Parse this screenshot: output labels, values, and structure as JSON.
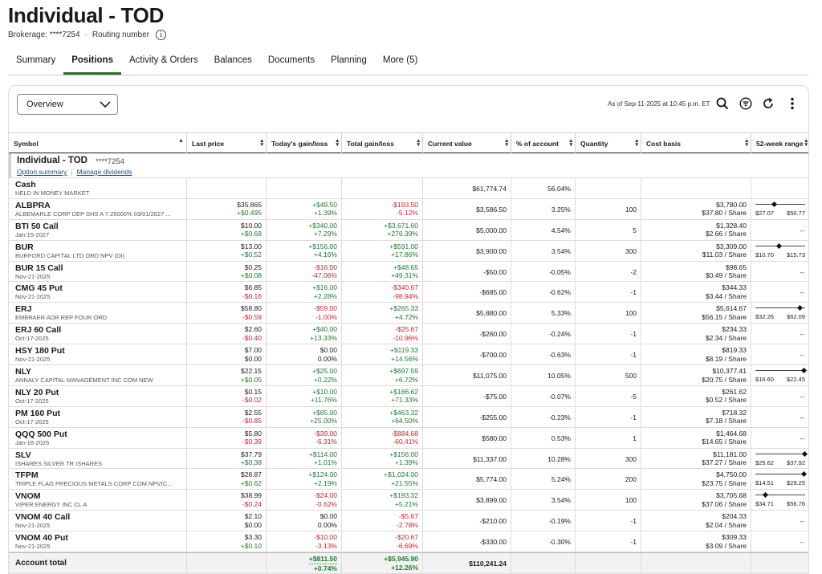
{
  "account": {
    "title": "Individual - TOD",
    "brokerage_label": "Brokerage: ****7254",
    "routing_label": "Routing number",
    "sep": "·"
  },
  "tabs": [
    "Summary",
    "Positions",
    "Activity & Orders",
    "Balances",
    "Documents",
    "Planning",
    "More (5)"
  ],
  "toolbar": {
    "view": "Overview",
    "as_of": "As of Sep-11-2025 at 10:45 p.m. ET"
  },
  "columns": [
    "Symbol",
    "Last price",
    "Today's gain/loss",
    "Total gain/loss",
    "Current value",
    "% of account",
    "Quantity",
    "Cost basis",
    "52-week range"
  ],
  "group": {
    "name": "Individual - TOD",
    "number": "****7254",
    "links": [
      "Option summary",
      "Manage dividends"
    ]
  },
  "cash": {
    "symbol": "Cash",
    "desc": "HELD IN MONEY MARKET",
    "value": "$61,774.74",
    "pct": "56.04%"
  },
  "rows": [
    {
      "sym": "ALBPRA",
      "desc": "ALBEMARLE CORP DEP SHS A 7.25000% 03/01/2027 ...",
      "last": "$35.865",
      "last_chg": "+$0.495",
      "last_dir": "pos",
      "today": "+$49.50",
      "today_pct": "+1.39%",
      "today_dir": "pos",
      "total": "-$193.50",
      "total_pct": "-5.12%",
      "total_dir": "neg",
      "value": "$3,586.50",
      "pct": "3.25%",
      "qty": "100",
      "cost": "$3,780.00",
      "cost_share": "$37.80 / Share",
      "rng": {
        "lo": "$27.07",
        "hi": "$50.77",
        "pos": 0.37
      }
    },
    {
      "sym": "BTI 50 Call",
      "desc": "Jan-15-2027",
      "last": "$10.00",
      "last_chg": "+$0.68",
      "last_dir": "pos",
      "today": "+$340.00",
      "today_pct": "+7.29%",
      "today_dir": "pos",
      "total": "+$3,671.60",
      "total_pct": "+276.39%",
      "total_dir": "pos",
      "value": "$5,000.00",
      "pct": "4.54%",
      "qty": "5",
      "cost": "$1,328.40",
      "cost_share": "$2.66 / Share",
      "rng": null
    },
    {
      "sym": "BUR",
      "desc": "BURFORD CAPITAL LTD ORD NPV (DI)",
      "last": "$13.00",
      "last_chg": "+$0.52",
      "last_dir": "pos",
      "today": "+$156.00",
      "today_pct": "+4.16%",
      "today_dir": "pos",
      "total": "+$591.00",
      "total_pct": "+17.86%",
      "total_dir": "pos",
      "value": "$3,900.00",
      "pct": "3.54%",
      "qty": "300",
      "cost": "$3,309.00",
      "cost_share": "$11.03 / Share",
      "rng": {
        "lo": "$10.70",
        "hi": "$15.73",
        "pos": 0.46
      }
    },
    {
      "sym": "BUR 15 Call",
      "desc": "Nov-21-2025",
      "last": "$0.25",
      "last_chg": "+$0.08",
      "last_dir": "pos",
      "today": "-$16.00",
      "today_pct": "-47.06%",
      "today_dir": "neg",
      "total": "+$48.65",
      "total_pct": "+49.31%",
      "total_dir": "pos",
      "value": "-$50.00",
      "pct": "-0.05%",
      "qty": "-2",
      "cost": "$98.65",
      "cost_share": "$0.49 / Share",
      "rng": null
    },
    {
      "sym": "CMG 45 Put",
      "desc": "Nov-21-2025",
      "last": "$6.85",
      "last_chg": "-$0.16",
      "last_dir": "neg",
      "today": "+$16.00",
      "today_pct": "+2.28%",
      "today_dir": "pos",
      "total": "-$340.67",
      "total_pct": "-98.94%",
      "total_dir": "neg",
      "value": "-$685.00",
      "pct": "-0.62%",
      "qty": "-1",
      "cost": "$344.33",
      "cost_share": "$3.44 / Share",
      "rng": null
    },
    {
      "sym": "ERJ",
      "desc": "EMBRAER ADR REP FOUR ORD",
      "last": "$58.80",
      "last_chg": "-$0.59",
      "last_dir": "neg",
      "today": "-$59.00",
      "today_pct": "-1.00%",
      "today_dir": "neg",
      "total": "+$265.33",
      "total_pct": "+4.72%",
      "total_dir": "pos",
      "value": "$5,880.00",
      "pct": "5.33%",
      "qty": "100",
      "cost": "$5,614.67",
      "cost_share": "$56.15 / Share",
      "rng": {
        "lo": "$32.26",
        "hi": "$62.09",
        "pos": 0.89
      }
    },
    {
      "sym": "ERJ 60 Call",
      "desc": "Oct-17-2025",
      "last": "$2.60",
      "last_chg": "-$0.40",
      "last_dir": "neg",
      "today": "+$40.00",
      "today_pct": "+13.33%",
      "today_dir": "pos",
      "total": "-$25.67",
      "total_pct": "-10.96%",
      "total_dir": "neg",
      "value": "-$260.00",
      "pct": "-0.24%",
      "qty": "-1",
      "cost": "$234.33",
      "cost_share": "$2.34 / Share",
      "rng": null
    },
    {
      "sym": "HSY 180 Put",
      "desc": "Nov-21-2025",
      "last": "$7.00",
      "last_chg": "$0.00",
      "last_dir": "zero",
      "today": "$0.00",
      "today_pct": "0.00%",
      "today_dir": "zero",
      "total": "+$119.33",
      "total_pct": "+14.56%",
      "total_dir": "pos",
      "value": "-$700.00",
      "pct": "-0.63%",
      "qty": "-1",
      "cost": "$819.33",
      "cost_share": "$8.19 / Share",
      "rng": null
    },
    {
      "sym": "NLY",
      "desc": "ANNALY CAPITAL MANAGEMENT INC COM NEW",
      "last": "$22.15",
      "last_chg": "+$0.05",
      "last_dir": "pos",
      "today": "+$25.00",
      "today_pct": "+0.22%",
      "today_dir": "pos",
      "total": "+$697.59",
      "total_pct": "+6.72%",
      "total_dir": "pos",
      "value": "$11,075.00",
      "pct": "10.05%",
      "qty": "500",
      "cost": "$10,377.41",
      "cost_share": "$20.75 / Share",
      "rng": {
        "lo": "$16.60",
        "hi": "$22.45",
        "pos": 0.97
      }
    },
    {
      "sym": "NLY 20 Put",
      "desc": "Oct-17-2025",
      "last": "$0.15",
      "last_chg": "-$0.02",
      "last_dir": "neg",
      "today": "+$10.00",
      "today_pct": "+11.76%",
      "today_dir": "pos",
      "total": "+$186.62",
      "total_pct": "+71.33%",
      "total_dir": "pos",
      "value": "-$75.00",
      "pct": "-0.07%",
      "qty": "-5",
      "cost": "$261.62",
      "cost_share": "$0.52 / Share",
      "rng": null
    },
    {
      "sym": "PM 160 Put",
      "desc": "Oct-17-2025",
      "last": "$2.55",
      "last_chg": "-$0.85",
      "last_dir": "neg",
      "today": "+$85.00",
      "today_pct": "+25.00%",
      "today_dir": "pos",
      "total": "+$463.32",
      "total_pct": "+64.50%",
      "total_dir": "pos",
      "value": "-$255.00",
      "pct": "-0.23%",
      "qty": "-1",
      "cost": "$718.32",
      "cost_share": "$7.18 / Share",
      "rng": null
    },
    {
      "sym": "QQQ 500 Put",
      "desc": "Jan-16-2026",
      "last": "$5.80",
      "last_chg": "-$0.39",
      "last_dir": "neg",
      "today": "-$39.00",
      "today_pct": "-6.31%",
      "today_dir": "neg",
      "total": "-$884.68",
      "total_pct": "-60.41%",
      "total_dir": "neg",
      "value": "$580.00",
      "pct": "0.53%",
      "qty": "1",
      "cost": "$1,464.68",
      "cost_share": "$14.65 / Share",
      "rng": null
    },
    {
      "sym": "SLV",
      "desc": "ISHARES SILVER TR ISHARES",
      "last": "$37.79",
      "last_chg": "+$0.38",
      "last_dir": "pos",
      "today": "+$114.00",
      "today_pct": "+1.01%",
      "today_dir": "pos",
      "total": "+$156.00",
      "total_pct": "+1.39%",
      "total_dir": "pos",
      "value": "$11,337.00",
      "pct": "10.28%",
      "qty": "300",
      "cost": "$11,181.00",
      "cost_share": "$37.27 / Share",
      "rng": {
        "lo": "$25.62",
        "hi": "$37.92",
        "pos": 0.99
      }
    },
    {
      "sym": "TFPM",
      "desc": "TRIPLE FLAG PRECIOUS METALS CORP COM NPV(C...",
      "last": "$28.87",
      "last_chg": "+$0.62",
      "last_dir": "pos",
      "today": "+$124.00",
      "today_pct": "+2.19%",
      "today_dir": "pos",
      "total": "+$1,024.00",
      "total_pct": "+21.55%",
      "total_dir": "pos",
      "value": "$5,774.00",
      "pct": "5.24%",
      "qty": "200",
      "cost": "$4,750.00",
      "cost_share": "$23.75 / Share",
      "rng": {
        "lo": "$14.51",
        "hi": "$29.25",
        "pos": 0.97
      }
    },
    {
      "sym": "VNOM",
      "desc": "VIPER ENERGY INC CL A",
      "last": "$38.99",
      "last_chg": "-$0.24",
      "last_dir": "neg",
      "today": "-$24.00",
      "today_pct": "-0.62%",
      "today_dir": "neg",
      "total": "+$193.32",
      "total_pct": "+5.21%",
      "total_dir": "pos",
      "value": "$3,899.00",
      "pct": "3.54%",
      "qty": "100",
      "cost": "$3,705.68",
      "cost_share": "$37.06 / Share",
      "rng": {
        "lo": "$34.71",
        "hi": "$56.76",
        "pos": 0.19
      }
    },
    {
      "sym": "VNOM 40 Call",
      "desc": "Nov-21-2025",
      "last": "$2.10",
      "last_chg": "$0.00",
      "last_dir": "zero",
      "today": "$0.00",
      "today_pct": "0.00%",
      "today_dir": "zero",
      "total": "-$5.67",
      "total_pct": "-2.78%",
      "total_dir": "neg",
      "value": "-$210.00",
      "pct": "-0.19%",
      "qty": "-1",
      "cost": "$204.33",
      "cost_share": "$2.04 / Share",
      "rng": null
    },
    {
      "sym": "VNOM 40 Put",
      "desc": "Nov-21-2025",
      "last": "$3.30",
      "last_chg": "+$0.10",
      "last_dir": "pos",
      "today": "-$10.00",
      "today_pct": "-3.13%",
      "today_dir": "neg",
      "total": "-$20.67",
      "total_pct": "-6.69%",
      "total_dir": "neg",
      "value": "-$330.00",
      "pct": "-0.30%",
      "qty": "-1",
      "cost": "$309.33",
      "cost_share": "$3.09 / Share",
      "rng": null
    }
  ],
  "total": {
    "label": "Account total",
    "today": "+$811.50",
    "today_pct": "+0.74%",
    "total": "+$5,945.90",
    "total_pct": "+12.26%",
    "value": "$110,241.24"
  },
  "range_empty": "--",
  "colors": {
    "positive": "#1e7a2e",
    "negative": "#c2272d",
    "accent": "#2f6b2f"
  }
}
